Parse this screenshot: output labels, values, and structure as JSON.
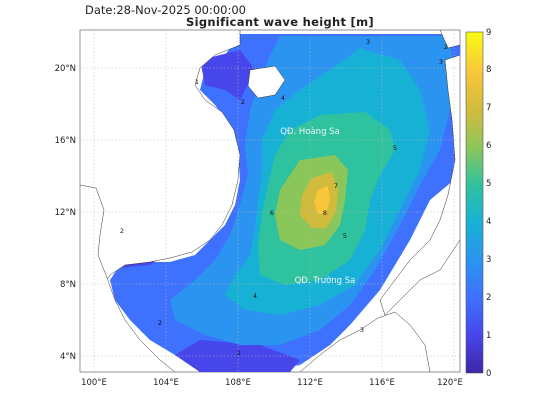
{
  "header": {
    "date": "Date:28-Nov-2025 00:00:00",
    "title": "Significant wave height [m]"
  },
  "map": {
    "x_ticks": [
      "100°E",
      "104°E",
      "108°E",
      "112°E",
      "116°E",
      "120°E"
    ],
    "y_ticks": [
      "20°N",
      "16°N",
      "12°N",
      "8°N",
      "4°N"
    ],
    "places": [
      {
        "label": "QĐ. Hoàng Sa"
      },
      {
        "label": "QĐ. Trường Sa"
      }
    ],
    "contour_labels": [
      "1",
      "2",
      "3",
      "4",
      "5",
      "6",
      "7",
      "8"
    ]
  },
  "colorbar": {
    "min": 0,
    "max": 9,
    "ticks": [
      "0",
      "1",
      "2",
      "3",
      "4",
      "5",
      "6",
      "7",
      "8",
      "9"
    ],
    "colors": [
      "#3e26a8",
      "#4746eb",
      "#3e71fd",
      "#2b94f0",
      "#18b1d6",
      "#2fc29f",
      "#8bc65a",
      "#d1bb3d",
      "#f9c63a",
      "#f9fb15"
    ]
  }
}
